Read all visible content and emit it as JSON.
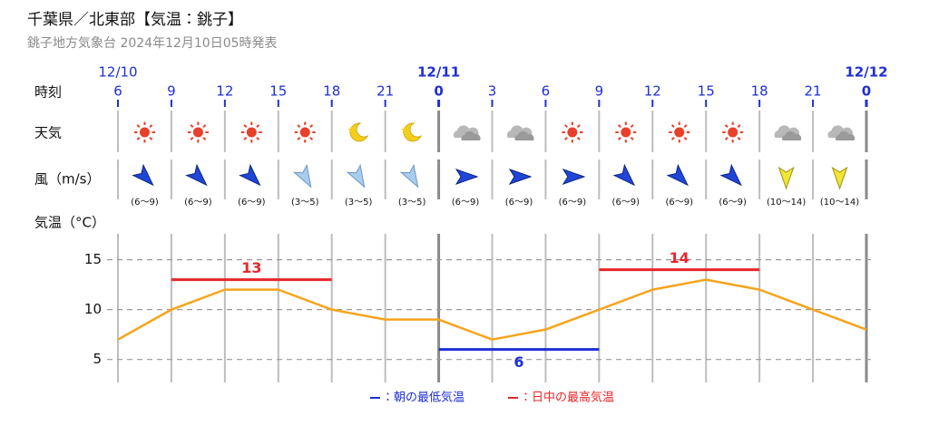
{
  "header": {
    "title": "千葉県／北東部【気温：銚子】",
    "subtitle": "銚子地方気象台 2024年12月10日05時発表"
  },
  "dates": [
    "12/10",
    null,
    null,
    null,
    null,
    null,
    "12/11",
    null,
    null,
    null,
    null,
    null,
    null,
    null,
    "12/12"
  ],
  "row_labels": {
    "time": "時刻",
    "weather": "天気",
    "wind": "風（m/s）"
  },
  "wind_labels": [
    "(6〜9)",
    "(6〜9)",
    "(6〜9)",
    "(3〜5)",
    "(3〜5)",
    "(3〜5)",
    "(6〜9)",
    "(6〜9)",
    "(6〜9)",
    "(6〜9)",
    "(6〜9)",
    "(6〜9)",
    "(10〜14)",
    "(10〜14)"
  ],
  "chart_data": {
    "type": "line",
    "y_label": "気温（°C）",
    "categories": [
      6,
      9,
      12,
      15,
      18,
      21,
      0,
      3,
      6,
      9,
      12,
      15,
      18,
      21,
      0
    ],
    "values": [
      7,
      10,
      12,
      12,
      10,
      9,
      9,
      7,
      8,
      10,
      12,
      13,
      12,
      10,
      8
    ],
    "color": "#f5a41c",
    "series": [
      {
        "name": "：朝の最低気温",
        "color": "#1f2fd6",
        "values": [
          null,
          null,
          null,
          null,
          null,
          null,
          6,
          6,
          6,
          6,
          null,
          null,
          null,
          null,
          null
        ]
      },
      {
        "name": "：日中の最高気温",
        "color": "#e8262b",
        "values": [
          null,
          13,
          13,
          13,
          13,
          null,
          null,
          null,
          null,
          14,
          14,
          14,
          14,
          null,
          null
        ]
      }
    ],
    "ylim": [
      2.7,
      17.6
    ],
    "yticks": [
      5,
      10,
      15
    ],
    "grid": true
  }
}
